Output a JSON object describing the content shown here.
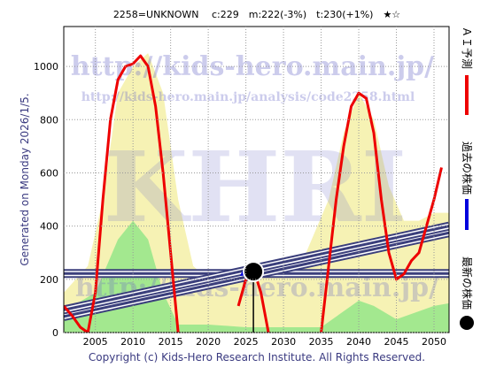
{
  "chart_data": {
    "type": "line",
    "title": "2258=UNKNOWN　 c:229　m:222(-3%)　t:230(+1%)　★☆",
    "y_label": "Generated on Monday 2026/1/5.",
    "footer": "Copyright (c) Kids-Hero Research Institute. All Rights Reserved.",
    "watermarks": [
      "http://kids-hero.main.jp/",
      "http://kids-hero.main.jp/analysis/code2258.html",
      "KHRI",
      "http://kids-hero.main.jp/"
    ],
    "xlim": [
      2000.8,
      2052
    ],
    "ylim": [
      0,
      1150
    ],
    "xticks": [
      2005,
      2010,
      2015,
      2020,
      2025,
      2030,
      2035,
      2040,
      2045,
      2050
    ],
    "yticks": [
      0,
      200,
      400,
      600,
      800,
      1000
    ],
    "grid": true,
    "series": [
      {
        "kind": "area",
        "color": "#f6f2b4",
        "x": [
          2000.8,
          2004,
          2006,
          2008,
          2010,
          2012,
          2014,
          2016,
          2018,
          2020,
          2023,
          2026,
          2030,
          2033,
          2036,
          2038,
          2040,
          2042,
          2044,
          2046,
          2048,
          2050,
          2052
        ],
        "values": [
          150,
          250,
          500,
          900,
          1000,
          1050,
          900,
          500,
          250,
          200,
          200,
          250,
          250,
          300,
          500,
          750,
          900,
          800,
          550,
          420,
          420,
          450,
          450
        ]
      },
      {
        "kind": "area",
        "color": "#a3e88f",
        "x": [
          2000.8,
          2005,
          2008,
          2010,
          2012,
          2014,
          2016,
          2020,
          2025,
          2030,
          2035,
          2038,
          2040,
          2042,
          2045,
          2050,
          2052
        ],
        "values": [
          80,
          150,
          350,
          420,
          350,
          150,
          30,
          30,
          20,
          20,
          20,
          80,
          120,
          100,
          50,
          100,
          110
        ]
      },
      {
        "kind": "band",
        "color": "#3b3f7c",
        "x": [
          2000.8,
          2052
        ],
        "values": [
          222,
          222
        ]
      },
      {
        "kind": "band",
        "color": "#3b3f7c",
        "x": [
          2000.8,
          2052
        ],
        "values": [
          60,
          375
        ]
      },
      {
        "kind": "band",
        "color": "#3b3f7c",
        "x": [
          2000.8,
          2052
        ],
        "values": [
          85,
          400
        ]
      },
      {
        "kind": "line",
        "name": "ＡＩ予測",
        "color": "#ee0000",
        "x": [
          2000.8,
          2002,
          2003,
          2004,
          2005,
          2006,
          2007,
          2008,
          2009,
          2010,
          2011,
          2012,
          2013,
          2014,
          2015,
          2016,
          2017,
          2020,
          2024,
          2025,
          2026,
          2027,
          2028,
          2032,
          2035,
          2036,
          2037,
          2038,
          2039,
          2040,
          2041,
          2042,
          2043,
          2044,
          2045,
          2046,
          2047,
          2048,
          2049,
          2050,
          2051
        ],
        "values": [
          100,
          60,
          20,
          0,
          150,
          500,
          800,
          950,
          1000,
          1010,
          1040,
          1000,
          850,
          600,
          300,
          0,
          null,
          null,
          100,
          200,
          240,
          150,
          0,
          null,
          0,
          250,
          500,
          700,
          850,
          900,
          880,
          750,
          500,
          300,
          200,
          220,
          270,
          300,
          400,
          500,
          620
        ]
      },
      {
        "kind": "triangle",
        "name": "過去の株価",
        "color": "#0000dd",
        "x": [
          2024.8
        ],
        "values": [
          220
        ]
      },
      {
        "kind": "circle",
        "name": "最新の株価",
        "color": "#000000",
        "x": [
          2026
        ],
        "values": [
          229
        ]
      }
    ]
  }
}
